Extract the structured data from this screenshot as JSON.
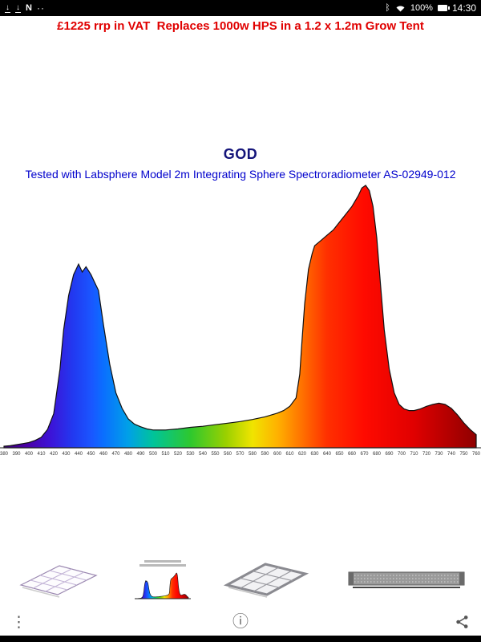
{
  "status_bar": {
    "time": "14:30",
    "battery_percent": "100%",
    "left_icons": [
      "download-icon",
      "download-icon",
      "nfc-icon",
      "dots-icon"
    ],
    "right_icons": [
      "bluetooth-icon",
      "wifi-icon",
      "battery-icon"
    ]
  },
  "promo": {
    "text": "£1225 rrp in VAT  Replaces 1000w HPS in a 1.2 x 1.2m Grow Tent",
    "color": "#e00000"
  },
  "chart": {
    "title": "GOD",
    "title_color": "#14147a",
    "subtitle": "Tested with Labsphere Model 2m Integrating Sphere Spectroradiometer AS-02949-012",
    "subtitle_color": "#0000cc"
  },
  "chart_data": {
    "type": "area",
    "title": "GOD",
    "xlabel": "",
    "ylabel": "",
    "xlim": [
      380,
      760
    ],
    "ylim": [
      0,
      1
    ],
    "grid": false,
    "x_ticks": [
      380,
      390,
      400,
      410,
      420,
      430,
      440,
      450,
      460,
      470,
      480,
      490,
      500,
      510,
      520,
      530,
      540,
      550,
      560,
      570,
      580,
      590,
      600,
      610,
      620,
      630,
      640,
      650,
      660,
      670,
      680,
      690,
      700,
      710,
      720,
      730,
      740,
      750,
      760
    ],
    "points": [
      [
        380,
        0.006
      ],
      [
        385,
        0.008
      ],
      [
        390,
        0.012
      ],
      [
        395,
        0.016
      ],
      [
        400,
        0.02
      ],
      [
        405,
        0.028
      ],
      [
        410,
        0.04
      ],
      [
        415,
        0.07
      ],
      [
        420,
        0.13
      ],
      [
        425,
        0.3
      ],
      [
        428,
        0.45
      ],
      [
        432,
        0.58
      ],
      [
        436,
        0.66
      ],
      [
        440,
        0.7
      ],
      [
        443,
        0.67
      ],
      [
        446,
        0.69
      ],
      [
        450,
        0.66
      ],
      [
        453,
        0.63
      ],
      [
        456,
        0.6
      ],
      [
        460,
        0.47
      ],
      [
        465,
        0.32
      ],
      [
        470,
        0.21
      ],
      [
        475,
        0.15
      ],
      [
        480,
        0.11
      ],
      [
        485,
        0.09
      ],
      [
        490,
        0.08
      ],
      [
        495,
        0.072
      ],
      [
        500,
        0.068
      ],
      [
        510,
        0.068
      ],
      [
        520,
        0.072
      ],
      [
        530,
        0.078
      ],
      [
        540,
        0.082
      ],
      [
        550,
        0.088
      ],
      [
        560,
        0.094
      ],
      [
        570,
        0.1
      ],
      [
        580,
        0.108
      ],
      [
        590,
        0.118
      ],
      [
        600,
        0.132
      ],
      [
        605,
        0.142
      ],
      [
        610,
        0.158
      ],
      [
        615,
        0.19
      ],
      [
        618,
        0.28
      ],
      [
        620,
        0.42
      ],
      [
        622,
        0.55
      ],
      [
        625,
        0.68
      ],
      [
        628,
        0.74
      ],
      [
        630,
        0.77
      ],
      [
        635,
        0.79
      ],
      [
        640,
        0.81
      ],
      [
        645,
        0.83
      ],
      [
        650,
        0.86
      ],
      [
        655,
        0.89
      ],
      [
        660,
        0.92
      ],
      [
        665,
        0.96
      ],
      [
        668,
        0.99
      ],
      [
        671,
        1.0
      ],
      [
        674,
        0.98
      ],
      [
        677,
        0.92
      ],
      [
        680,
        0.8
      ],
      [
        683,
        0.62
      ],
      [
        686,
        0.45
      ],
      [
        690,
        0.3
      ],
      [
        694,
        0.21
      ],
      [
        698,
        0.165
      ],
      [
        702,
        0.148
      ],
      [
        706,
        0.142
      ],
      [
        710,
        0.142
      ],
      [
        715,
        0.148
      ],
      [
        720,
        0.158
      ],
      [
        725,
        0.165
      ],
      [
        730,
        0.17
      ],
      [
        735,
        0.165
      ],
      [
        740,
        0.15
      ],
      [
        745,
        0.125
      ],
      [
        750,
        0.095
      ],
      [
        755,
        0.07
      ],
      [
        760,
        0.05
      ]
    ],
    "gradient_stops": [
      [
        0.0,
        "#3d007a"
      ],
      [
        0.05,
        "#4b00a8"
      ],
      [
        0.1,
        "#3c14d8"
      ],
      [
        0.145,
        "#2238f0"
      ],
      [
        0.185,
        "#1a56ff"
      ],
      [
        0.21,
        "#0b6eff"
      ],
      [
        0.263,
        "#00a0e8"
      ],
      [
        0.316,
        "#00c49a"
      ],
      [
        0.395,
        "#2ec82e"
      ],
      [
        0.47,
        "#9ad000"
      ],
      [
        0.526,
        "#f0e400"
      ],
      [
        0.58,
        "#ffb000"
      ],
      [
        0.632,
        "#ff7000"
      ],
      [
        0.684,
        "#ff3000"
      ],
      [
        0.763,
        "#ff0a00"
      ],
      [
        0.868,
        "#e00000"
      ],
      [
        1.0,
        "#8f0000"
      ]
    ]
  },
  "thumbnails": [
    {
      "name": "led-panel-angled"
    },
    {
      "name": "spectrum-mini"
    },
    {
      "name": "led-panel-frame"
    },
    {
      "name": "led-bar-fixture"
    }
  ],
  "footer": {
    "menu_icon": "⋮",
    "info_icon": "ⓘ"
  }
}
